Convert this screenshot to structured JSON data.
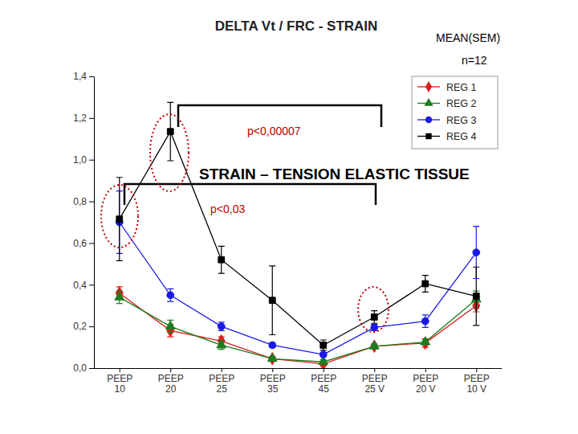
{
  "chart_data": {
    "type": "line",
    "title": "DELTA Vt / FRC - STRAIN",
    "annotations": [
      "MEAN(SEM)",
      "n=12",
      "p<0,00007",
      "STRAIN – TENSION ELASTIC TISSUE",
      "p<0,03"
    ],
    "categories": [
      "PEEP 10",
      "PEEP 20",
      "PEEP 25",
      "PEEP 35",
      "PEEP 45",
      "PEEP 25 V",
      "PEEP 20 V",
      "PEEP 10 V"
    ],
    "ylim": [
      0,
      1.4
    ],
    "yticks": [
      {
        "value": 0,
        "label": "0,0"
      },
      {
        "value": 0.2,
        "label": "0,2"
      },
      {
        "value": 0.4,
        "label": "0,4"
      },
      {
        "value": 0.6,
        "label": "0,6"
      },
      {
        "value": 0.8,
        "label": "0,8"
      },
      {
        "value": 1,
        "label": "1,0"
      },
      {
        "value": 1.2,
        "label": "1,2"
      },
      {
        "value": 1.4,
        "label": "1,4"
      }
    ],
    "grid": false,
    "legend": "top-right",
    "series": [
      {
        "name": "REG 1",
        "color": "#dd1c1c",
        "marker": "diamond",
        "values": [
          0.36,
          0.18,
          0.13,
          0.045,
          0.02,
          0.105,
          0.12,
          0.3
        ],
        "errors": [
          0.03,
          0.03,
          0.02,
          0.01,
          0.01,
          0.01,
          0.02,
          0.03
        ]
      },
      {
        "name": "REG 2",
        "color": "#1e7d1e",
        "marker": "triangle",
        "values": [
          0.34,
          0.2,
          0.11,
          0.045,
          0.03,
          0.105,
          0.125,
          0.33
        ],
        "errors": [
          0.03,
          0.03,
          0.02,
          0.01,
          0.01,
          0.01,
          0.01,
          0.04
        ]
      },
      {
        "name": "REG 3",
        "color": "#1a1ae6",
        "marker": "circle",
        "values": [
          0.7,
          0.35,
          0.2,
          0.11,
          0.065,
          0.195,
          0.225,
          0.555
        ],
        "errors": [
          0.15,
          0.03,
          0.02,
          0.01,
          0.01,
          0.015,
          0.03,
          0.125
        ]
      },
      {
        "name": "REG 4",
        "color": "#000000",
        "marker": "square",
        "values": [
          0.715,
          1.135,
          0.52,
          0.325,
          0.11,
          0.245,
          0.405,
          0.345
        ],
        "errors": [
          0.2,
          0.14,
          0.065,
          0.165,
          0.025,
          0.03,
          0.04,
          0.14
        ]
      }
    ]
  }
}
